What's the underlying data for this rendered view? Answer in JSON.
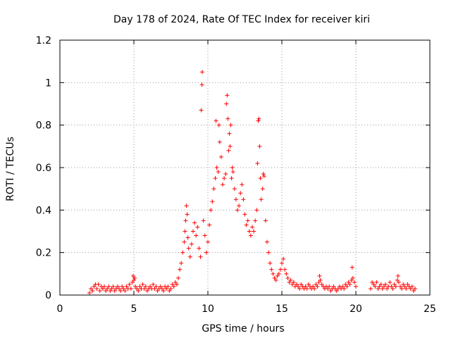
{
  "chart_data": {
    "type": "scatter",
    "title": "Day 178 of 2024, Rate Of TEC Index for receiver kiri",
    "xlabel": "GPS time / hours",
    "ylabel": "ROTI / TECUs",
    "xlim": [
      0,
      25
    ],
    "ylim": [
      0,
      1.2
    ],
    "x_ticks": [
      0,
      5,
      10,
      15,
      20,
      25
    ],
    "x_tick_labels": [
      "0",
      "5",
      "10",
      "15",
      "20",
      "25"
    ],
    "y_ticks": [
      0,
      0.2,
      0.4,
      0.6,
      0.8,
      1.0,
      1.2
    ],
    "y_tick_labels": [
      "0",
      "0.2",
      "0.4",
      "0.6",
      "0.8",
      "1",
      "1.2"
    ],
    "grid": true,
    "marker": "+",
    "color": "#ff0000",
    "series": [
      {
        "name": "ROTI",
        "points": [
          [
            2.0,
            0.01
          ],
          [
            2.1,
            0.03
          ],
          [
            2.2,
            0.02
          ],
          [
            2.3,
            0.04
          ],
          [
            2.4,
            0.05
          ],
          [
            2.5,
            0.03
          ],
          [
            2.6,
            0.05
          ],
          [
            2.7,
            0.02
          ],
          [
            2.8,
            0.04
          ],
          [
            2.9,
            0.03
          ],
          [
            3.0,
            0.04
          ],
          [
            3.1,
            0.02
          ],
          [
            3.2,
            0.03
          ],
          [
            3.3,
            0.04
          ],
          [
            3.4,
            0.02
          ],
          [
            3.5,
            0.03
          ],
          [
            3.6,
            0.04
          ],
          [
            3.7,
            0.02
          ],
          [
            3.8,
            0.03
          ],
          [
            3.9,
            0.04
          ],
          [
            4.0,
            0.03
          ],
          [
            4.1,
            0.02
          ],
          [
            4.2,
            0.04
          ],
          [
            4.3,
            0.03
          ],
          [
            4.4,
            0.02
          ],
          [
            4.5,
            0.04
          ],
          [
            4.6,
            0.03
          ],
          [
            4.7,
            0.05
          ],
          [
            4.8,
            0.03
          ],
          [
            4.9,
            0.06
          ],
          [
            4.95,
            0.09
          ],
          [
            5.0,
            0.07
          ],
          [
            5.05,
            0.08
          ],
          [
            5.1,
            0.04
          ],
          [
            5.2,
            0.03
          ],
          [
            5.3,
            0.02
          ],
          [
            5.4,
            0.04
          ],
          [
            5.5,
            0.03
          ],
          [
            5.6,
            0.05
          ],
          [
            5.7,
            0.03
          ],
          [
            5.8,
            0.04
          ],
          [
            5.9,
            0.02
          ],
          [
            6.0,
            0.03
          ],
          [
            6.1,
            0.04
          ],
          [
            6.2,
            0.03
          ],
          [
            6.3,
            0.05
          ],
          [
            6.4,
            0.03
          ],
          [
            6.5,
            0.04
          ],
          [
            6.6,
            0.02
          ],
          [
            6.7,
            0.03
          ],
          [
            6.8,
            0.04
          ],
          [
            6.9,
            0.03
          ],
          [
            7.0,
            0.02
          ],
          [
            7.1,
            0.04
          ],
          [
            7.2,
            0.03
          ],
          [
            7.3,
            0.04
          ],
          [
            7.4,
            0.02
          ],
          [
            7.5,
            0.03
          ],
          [
            7.6,
            0.05
          ],
          [
            7.7,
            0.04
          ],
          [
            7.8,
            0.06
          ],
          [
            7.9,
            0.05
          ],
          [
            8.0,
            0.08
          ],
          [
            8.1,
            0.12
          ],
          [
            8.2,
            0.15
          ],
          [
            8.3,
            0.2
          ],
          [
            8.4,
            0.25
          ],
          [
            8.45,
            0.3
          ],
          [
            8.5,
            0.35
          ],
          [
            8.55,
            0.42
          ],
          [
            8.6,
            0.38
          ],
          [
            8.65,
            0.27
          ],
          [
            8.7,
            0.22
          ],
          [
            8.8,
            0.18
          ],
          [
            8.9,
            0.24
          ],
          [
            9.0,
            0.3
          ],
          [
            9.1,
            0.34
          ],
          [
            9.2,
            0.28
          ],
          [
            9.3,
            0.32
          ],
          [
            9.4,
            0.22
          ],
          [
            9.5,
            0.18
          ],
          [
            9.55,
            0.87
          ],
          [
            9.6,
            0.99
          ],
          [
            9.62,
            1.05
          ],
          [
            9.7,
            0.35
          ],
          [
            9.8,
            0.28
          ],
          [
            9.9,
            0.2
          ],
          [
            10.0,
            0.25
          ],
          [
            10.1,
            0.33
          ],
          [
            10.2,
            0.4
          ],
          [
            10.3,
            0.44
          ],
          [
            10.4,
            0.5
          ],
          [
            10.5,
            0.55
          ],
          [
            10.55,
            0.82
          ],
          [
            10.6,
            0.6
          ],
          [
            10.7,
            0.58
          ],
          [
            10.75,
            0.8
          ],
          [
            10.8,
            0.72
          ],
          [
            10.9,
            0.65
          ],
          [
            11.0,
            0.52
          ],
          [
            11.1,
            0.55
          ],
          [
            11.2,
            0.57
          ],
          [
            11.25,
            0.9
          ],
          [
            11.3,
            0.94
          ],
          [
            11.35,
            0.83
          ],
          [
            11.4,
            0.68
          ],
          [
            11.45,
            0.76
          ],
          [
            11.5,
            0.7
          ],
          [
            11.55,
            0.8
          ],
          [
            11.6,
            0.55
          ],
          [
            11.65,
            0.6
          ],
          [
            11.7,
            0.58
          ],
          [
            11.8,
            0.5
          ],
          [
            11.9,
            0.45
          ],
          [
            12.0,
            0.4
          ],
          [
            12.1,
            0.42
          ],
          [
            12.2,
            0.48
          ],
          [
            12.3,
            0.52
          ],
          [
            12.4,
            0.45
          ],
          [
            12.5,
            0.38
          ],
          [
            12.6,
            0.33
          ],
          [
            12.7,
            0.35
          ],
          [
            12.8,
            0.3
          ],
          [
            12.9,
            0.28
          ],
          [
            13.0,
            0.32
          ],
          [
            13.1,
            0.3
          ],
          [
            13.2,
            0.35
          ],
          [
            13.3,
            0.4
          ],
          [
            13.35,
            0.62
          ],
          [
            13.4,
            0.82
          ],
          [
            13.45,
            0.83
          ],
          [
            13.5,
            0.7
          ],
          [
            13.55,
            0.55
          ],
          [
            13.6,
            0.45
          ],
          [
            13.7,
            0.5
          ],
          [
            13.75,
            0.57
          ],
          [
            13.8,
            0.56
          ],
          [
            13.9,
            0.35
          ],
          [
            14.0,
            0.25
          ],
          [
            14.1,
            0.2
          ],
          [
            14.2,
            0.15
          ],
          [
            14.3,
            0.12
          ],
          [
            14.4,
            0.1
          ],
          [
            14.5,
            0.08
          ],
          [
            14.6,
            0.07
          ],
          [
            14.7,
            0.09
          ],
          [
            14.8,
            0.1
          ],
          [
            14.9,
            0.12
          ],
          [
            15.0,
            0.15
          ],
          [
            15.1,
            0.17
          ],
          [
            15.2,
            0.12
          ],
          [
            15.3,
            0.1
          ],
          [
            15.4,
            0.08
          ],
          [
            15.5,
            0.06
          ],
          [
            15.6,
            0.07
          ],
          [
            15.7,
            0.05
          ],
          [
            15.8,
            0.06
          ],
          [
            15.9,
            0.04
          ],
          [
            16.0,
            0.05
          ],
          [
            16.1,
            0.04
          ],
          [
            16.2,
            0.03
          ],
          [
            16.3,
            0.05
          ],
          [
            16.4,
            0.04
          ],
          [
            16.5,
            0.03
          ],
          [
            16.6,
            0.04
          ],
          [
            16.7,
            0.03
          ],
          [
            16.8,
            0.05
          ],
          [
            16.9,
            0.04
          ],
          [
            17.0,
            0.03
          ],
          [
            17.1,
            0.04
          ],
          [
            17.2,
            0.03
          ],
          [
            17.3,
            0.05
          ],
          [
            17.4,
            0.04
          ],
          [
            17.5,
            0.06
          ],
          [
            17.55,
            0.09
          ],
          [
            17.6,
            0.07
          ],
          [
            17.7,
            0.05
          ],
          [
            17.8,
            0.04
          ],
          [
            17.9,
            0.03
          ],
          [
            18.0,
            0.04
          ],
          [
            18.1,
            0.03
          ],
          [
            18.2,
            0.04
          ],
          [
            18.3,
            0.02
          ],
          [
            18.4,
            0.03
          ],
          [
            18.5,
            0.04
          ],
          [
            18.6,
            0.03
          ],
          [
            18.7,
            0.02
          ],
          [
            18.8,
            0.03
          ],
          [
            18.9,
            0.04
          ],
          [
            19.0,
            0.03
          ],
          [
            19.1,
            0.04
          ],
          [
            19.2,
            0.03
          ],
          [
            19.3,
            0.05
          ],
          [
            19.4,
            0.04
          ],
          [
            19.5,
            0.06
          ],
          [
            19.6,
            0.05
          ],
          [
            19.7,
            0.07
          ],
          [
            19.75,
            0.13
          ],
          [
            19.8,
            0.08
          ],
          [
            19.9,
            0.06
          ],
          [
            20.0,
            0.04
          ],
          [
            21.0,
            0.03
          ],
          [
            21.1,
            0.06
          ],
          [
            21.2,
            0.05
          ],
          [
            21.3,
            0.04
          ],
          [
            21.4,
            0.06
          ],
          [
            21.5,
            0.03
          ],
          [
            21.6,
            0.04
          ],
          [
            21.7,
            0.05
          ],
          [
            21.8,
            0.03
          ],
          [
            21.9,
            0.04
          ],
          [
            22.0,
            0.05
          ],
          [
            22.1,
            0.03
          ],
          [
            22.2,
            0.04
          ],
          [
            22.3,
            0.06
          ],
          [
            22.4,
            0.04
          ],
          [
            22.5,
            0.03
          ],
          [
            22.6,
            0.05
          ],
          [
            22.7,
            0.04
          ],
          [
            22.8,
            0.07
          ],
          [
            22.85,
            0.09
          ],
          [
            22.9,
            0.06
          ],
          [
            23.0,
            0.04
          ],
          [
            23.1,
            0.03
          ],
          [
            23.2,
            0.05
          ],
          [
            23.3,
            0.04
          ],
          [
            23.4,
            0.03
          ],
          [
            23.5,
            0.05
          ],
          [
            23.6,
            0.04
          ],
          [
            23.7,
            0.03
          ],
          [
            23.8,
            0.04
          ],
          [
            23.9,
            0.02
          ],
          [
            24.0,
            0.03
          ]
        ]
      }
    ]
  }
}
